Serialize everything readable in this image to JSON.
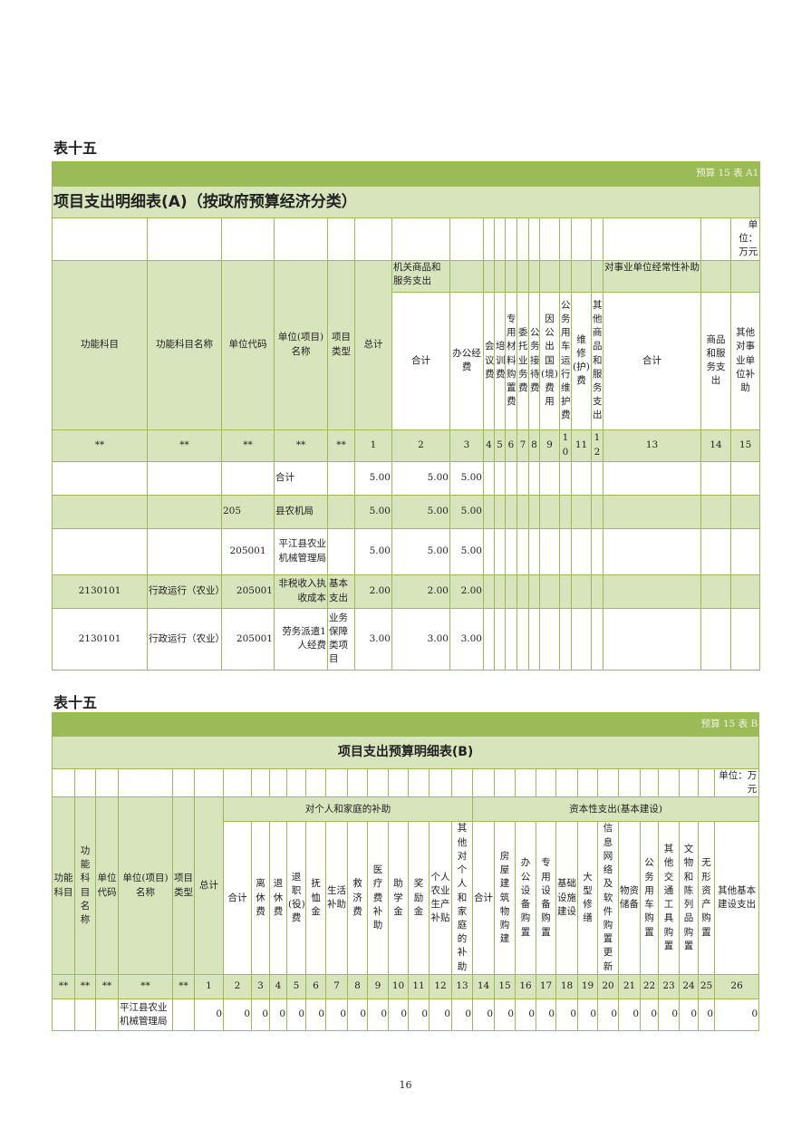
{
  "tableA": {
    "heading": "表十五",
    "tag": "预算 15 表 A1",
    "title": "项目支出明细表(A)（按政府预算经济分类）",
    "unit": "单位：万元",
    "fixed_headers": [
      "功能科目",
      "功能科目名称",
      "单位代码",
      "单位(项目)名称",
      "项目类型",
      "总计"
    ],
    "group_headers": {
      "goods_services": "机关商品和服务支出",
      "subsidy": "对事业单位经常性补助"
    },
    "sub_headers": [
      "合计",
      "办公经费",
      "会议费",
      "培训费",
      "专用材料购置费",
      "委托业务费",
      "公务接待费",
      "因公出国(境)费用",
      "公务用车运行维护费",
      "维修(护)费",
      "其他商品和服务支出",
      "合计",
      "商品和服务支出",
      "其他对事业单位补助"
    ],
    "number_row": [
      "**",
      "**",
      "**",
      "**",
      "**",
      "1",
      "2",
      "3",
      "4",
      "5",
      "6",
      "7",
      "8",
      "9",
      "10",
      "11",
      "12",
      "13",
      "14",
      "15"
    ],
    "rows": [
      [
        "",
        "",
        "",
        "合计",
        "",
        "5.00",
        "5.00",
        "5.00",
        "",
        "",
        "",
        "",
        "",
        "",
        "",
        "",
        "",
        "",
        "",
        ""
      ],
      [
        "",
        "",
        "205",
        "县农机局",
        "",
        "5.00",
        "5.00",
        "5.00",
        "",
        "",
        "",
        "",
        "",
        "",
        "",
        "",
        "",
        "",
        "",
        ""
      ],
      [
        "",
        "",
        "205001",
        "平江县农业机械管理局",
        "",
        "5.00",
        "5.00",
        "5.00",
        "",
        "",
        "",
        "",
        "",
        "",
        "",
        "",
        "",
        "",
        "",
        ""
      ],
      [
        "2130101",
        "行政运行（农业）",
        "205001",
        "非税收入执收成本",
        "基本支出",
        "2.00",
        "2.00",
        "2.00",
        "",
        "",
        "",
        "",
        "",
        "",
        "",
        "",
        "",
        "",
        "",
        ""
      ],
      [
        "2130101",
        "行政运行（农业）",
        "205001",
        "劳务派遣1人经费",
        "业务保障类项目",
        "3.00",
        "3.00",
        "3.00",
        "",
        "",
        "",
        "",
        "",
        "",
        "",
        "",
        "",
        "",
        "",
        ""
      ]
    ]
  },
  "tableB": {
    "heading": "表十五",
    "tag": "预算 15 表 B",
    "title": "项目支出预算明细表(B)",
    "unit": "单位：万元",
    "fixed_headers": [
      "功能科目",
      "功能科目名称",
      "单位代码",
      "单位(项目)名称",
      "项目类型",
      "总计"
    ],
    "group_headers": {
      "personal": "对个人和家庭的补助",
      "capital": "资本性支出(基本建设)"
    },
    "sub_headers": [
      "合计",
      "离休费",
      "退休费",
      "退职(役)费",
      "抚恤金",
      "生活补助",
      "救济费",
      "医疗费补助",
      "助学金",
      "奖励金",
      "个人农业生产补贴",
      "其他对个人和家庭的补助",
      "合计",
      "房屋建筑物购建",
      "办公设备购置",
      "专用设备购置",
      "基础设施建设",
      "大型修缮",
      "信息网络及软件购置更新",
      "物资储备",
      "公务用车购置",
      "其他交通工具购置",
      "文物和陈列品购置",
      "无形资产购置",
      "其他基本建设支出"
    ],
    "number_row": [
      "**",
      "**",
      "**",
      "**",
      "**",
      "1",
      "2",
      "3",
      "4",
      "5",
      "6",
      "7",
      "8",
      "9",
      "10",
      "11",
      "12",
      "13",
      "14",
      "15",
      "16",
      "17",
      "18",
      "19",
      "20",
      "21",
      "22",
      "23",
      "24",
      "25",
      "26"
    ],
    "rows": [
      [
        "",
        "",
        "",
        "平江县农业机械管理局",
        "",
        "0",
        "0",
        "0",
        "0",
        "0",
        "0",
        "0",
        "0",
        "0",
        "0",
        "0",
        "0",
        "0",
        "0",
        "0",
        "0",
        "0",
        "0",
        "0",
        "0",
        "0",
        "0",
        "0",
        "0",
        "0",
        "0"
      ]
    ]
  },
  "page_number": "16",
  "colors": {
    "border": "#9bbb59",
    "bar": "#9bbb59",
    "header_fill": "#d7e4bc"
  }
}
